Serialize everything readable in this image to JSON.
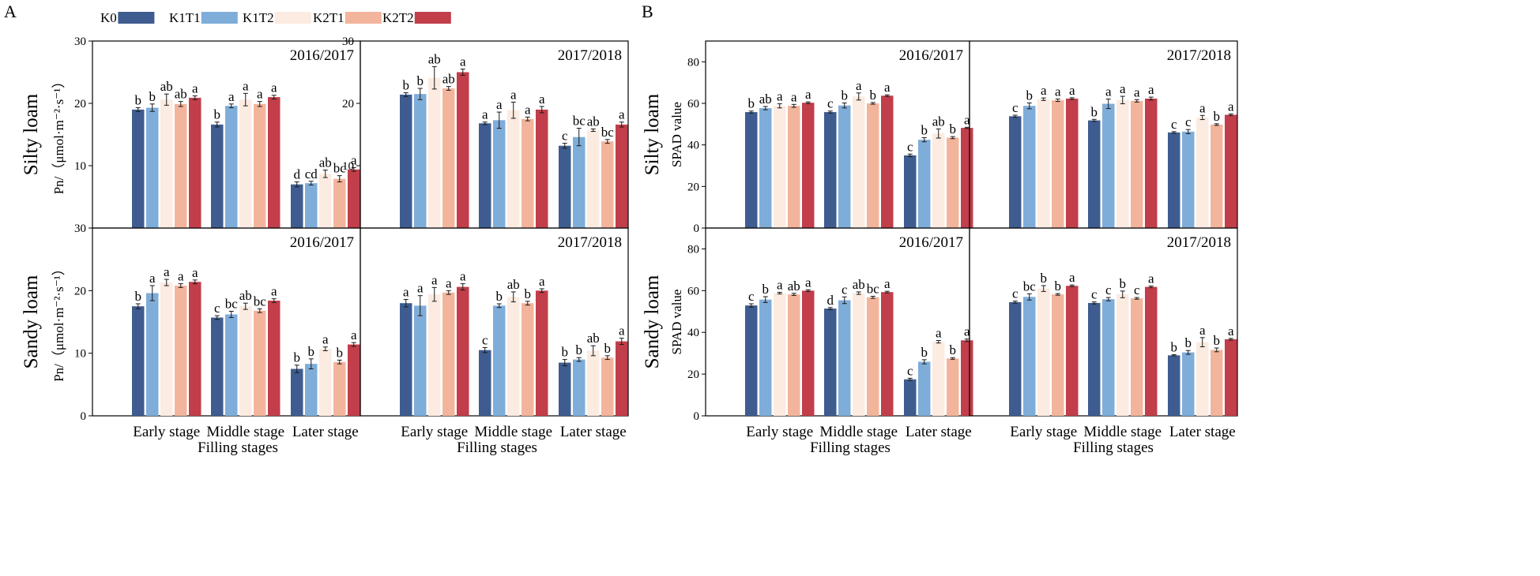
{
  "panels_text": {
    "A": {
      "letter": "A",
      "x_title": "Filling stages"
    },
    "B": {
      "letter": "B",
      "x_title": "Filling stages"
    }
  },
  "legend": [
    {
      "label": "K0",
      "color": "#3E5C8F"
    },
    {
      "label": "K1T1",
      "color": "#7FADD9"
    },
    {
      "label": "K1T2",
      "color": "#FCEBE1"
    },
    {
      "label": "K2T1",
      "color": "#F3B49C"
    },
    {
      "label": "K2T2",
      "color": "#C13E4A"
    }
  ],
  "chart_data": [
    {
      "type": "bar",
      "id": "A-silty-2016",
      "panel": "A",
      "title": "2016/2017",
      "soil": "Silty loam",
      "ylabel_unit": "Pn/（μmol·m⁻²·s⁻¹）",
      "ylim": [
        0,
        30
      ],
      "yticks": [
        10,
        20,
        30
      ],
      "categories": [
        "Early stage",
        "Middle stage",
        "Later stage"
      ],
      "series": [
        {
          "name": "K0",
          "values": [
            19.0,
            16.6,
            7.0
          ],
          "errors": [
            0.3,
            0.4,
            0.4
          ],
          "labels": [
            "b",
            "b",
            "d"
          ]
        },
        {
          "name": "K1T1",
          "values": [
            19.3,
            19.6,
            7.2
          ],
          "errors": [
            0.6,
            0.3,
            0.3
          ],
          "labels": [
            "b",
            "a",
            "cd"
          ]
        },
        {
          "name": "K1T2",
          "values": [
            20.6,
            20.6,
            8.7
          ],
          "errors": [
            0.9,
            1.0,
            0.6
          ],
          "labels": [
            "ab",
            "a",
            "ab"
          ]
        },
        {
          "name": "K2T1",
          "values": [
            19.9,
            19.9,
            7.9
          ],
          "errors": [
            0.4,
            0.4,
            0.5
          ],
          "labels": [
            "ab",
            "a",
            "bc"
          ]
        },
        {
          "name": "K2T2",
          "values": [
            20.9,
            21.0,
            9.4
          ],
          "errors": [
            0.3,
            0.3,
            0.3
          ],
          "labels": [
            "a",
            "a",
            "a"
          ]
        }
      ]
    },
    {
      "type": "bar",
      "id": "A-silty-2017",
      "panel": "A",
      "title": "2017/2018",
      "soil": "Silty loam",
      "ylim": [
        0,
        30
      ],
      "yticks": [
        10,
        20,
        30
      ],
      "categories": [
        "Early stage",
        "Middle stage",
        "Later stage"
      ],
      "series": [
        {
          "name": "K0",
          "values": [
            21.4,
            16.8,
            13.2
          ],
          "errors": [
            0.3,
            0.2,
            0.4
          ],
          "labels": [
            "b",
            "a",
            "c"
          ]
        },
        {
          "name": "K1T1",
          "values": [
            21.5,
            17.3,
            14.6
          ],
          "errors": [
            0.9,
            1.3,
            1.4
          ],
          "labels": [
            "b",
            "a",
            "bc"
          ]
        },
        {
          "name": "K1T2",
          "values": [
            24.1,
            18.9,
            15.7
          ],
          "errors": [
            1.8,
            1.3,
            0.2
          ],
          "labels": [
            "ab",
            "a",
            "ab"
          ]
        },
        {
          "name": "K2T1",
          "values": [
            22.4,
            17.5,
            13.9
          ],
          "errors": [
            0.3,
            0.3,
            0.3
          ],
          "labels": [
            "ab",
            "a",
            "bc"
          ]
        },
        {
          "name": "K2T2",
          "values": [
            25.0,
            19.0,
            16.6
          ],
          "errors": [
            0.5,
            0.5,
            0.4
          ],
          "labels": [
            "a",
            "a",
            "a"
          ]
        }
      ]
    },
    {
      "type": "bar",
      "id": "A-sandy-2016",
      "panel": "A",
      "title": "2016/2017",
      "soil": "Sandy loam",
      "ylabel_unit": "Pn/（μmol·m⁻²·s⁻¹）",
      "ylim": [
        0,
        30
      ],
      "yticks": [
        0,
        10,
        20,
        30
      ],
      "categories": [
        "Early stage",
        "Middle stage",
        "Later stage"
      ],
      "series": [
        {
          "name": "K0",
          "values": [
            17.5,
            15.7,
            7.5
          ],
          "errors": [
            0.4,
            0.3,
            0.6
          ],
          "labels": [
            "b",
            "c",
            "b"
          ]
        },
        {
          "name": "K1T1",
          "values": [
            19.6,
            16.2,
            8.3
          ],
          "errors": [
            1.2,
            0.5,
            0.8
          ],
          "labels": [
            "a",
            "bc",
            "b"
          ]
        },
        {
          "name": "K1T2",
          "values": [
            21.3,
            17.5,
            10.7
          ],
          "errors": [
            0.5,
            0.5,
            0.3
          ],
          "labels": [
            "a",
            "ab",
            "a"
          ]
        },
        {
          "name": "K2T1",
          "values": [
            20.8,
            16.8,
            8.6
          ],
          "errors": [
            0.3,
            0.3,
            0.3
          ],
          "labels": [
            "a",
            "bc",
            "b"
          ]
        },
        {
          "name": "K2T2",
          "values": [
            21.4,
            18.4,
            11.4
          ],
          "errors": [
            0.3,
            0.3,
            0.3
          ],
          "labels": [
            "a",
            "a",
            "a"
          ]
        }
      ]
    },
    {
      "type": "bar",
      "id": "A-sandy-2017",
      "panel": "A",
      "title": "2017/2018",
      "soil": "Sandy loam",
      "ylim": [
        0,
        30
      ],
      "categories": [
        "Early stage",
        "Middle stage",
        "Later stage"
      ],
      "series": [
        {
          "name": "K0",
          "values": [
            18.0,
            10.5,
            8.5
          ],
          "errors": [
            0.6,
            0.4,
            0.5
          ],
          "labels": [
            "a",
            "c",
            "b"
          ]
        },
        {
          "name": "K1T1",
          "values": [
            17.6,
            17.6,
            9.0
          ],
          "errors": [
            1.6,
            0.3,
            0.3
          ],
          "labels": [
            "a",
            "b",
            "b"
          ]
        },
        {
          "name": "K1T2",
          "values": [
            19.4,
            19.0,
            10.4
          ],
          "errors": [
            1.1,
            0.8,
            0.8
          ],
          "labels": [
            "a",
            "ab",
            "ab"
          ]
        },
        {
          "name": "K2T1",
          "values": [
            19.7,
            18.0,
            9.3
          ],
          "errors": [
            0.3,
            0.3,
            0.3
          ],
          "labels": [
            "a",
            "b",
            "b"
          ]
        },
        {
          "name": "K2T2",
          "values": [
            20.6,
            20.0,
            11.9
          ],
          "errors": [
            0.5,
            0.3,
            0.5
          ],
          "labels": [
            "a",
            "a",
            "a"
          ]
        }
      ]
    },
    {
      "type": "bar",
      "id": "B-silty-2016",
      "panel": "B",
      "title": "2016/2017",
      "soil": "Silty loam",
      "ylabel_unit": "SPAD value",
      "ylim": [
        0,
        90
      ],
      "yticks": [
        0,
        20,
        40,
        60,
        80
      ],
      "categories": [
        "Early stage",
        "Middle stage",
        "Later stage"
      ],
      "series": [
        {
          "name": "K0",
          "values": [
            55.8,
            55.8,
            35.0
          ],
          "errors": [
            0.5,
            0.5,
            0.6
          ],
          "labels": [
            "b",
            "c",
            "c"
          ]
        },
        {
          "name": "K1T1",
          "values": [
            57.7,
            59.0,
            42.5
          ],
          "errors": [
            0.8,
            1.2,
            1.0
          ],
          "labels": [
            "ab",
            "b",
            "b"
          ]
        },
        {
          "name": "K1T2",
          "values": [
            58.8,
            63.3,
            45.5
          ],
          "errors": [
            1.0,
            1.7,
            2.2
          ],
          "labels": [
            "a",
            "a",
            "ab"
          ]
        },
        {
          "name": "K2T1",
          "values": [
            58.8,
            60.0,
            43.5
          ],
          "errors": [
            0.7,
            0.4,
            0.5
          ],
          "labels": [
            "a",
            "b",
            "b"
          ]
        },
        {
          "name": "K2T2",
          "values": [
            60.3,
            63.7,
            48.2
          ],
          "errors": [
            0.4,
            0.4,
            0.3
          ],
          "labels": [
            "a",
            "a",
            "a"
          ]
        }
      ]
    },
    {
      "type": "bar",
      "id": "B-silty-2017",
      "panel": "B",
      "title": "2017/2018",
      "soil": "Silty loam",
      "ylim": [
        0,
        90
      ],
      "categories": [
        "Early stage",
        "Middle stage",
        "Later stage"
      ],
      "series": [
        {
          "name": "K0",
          "values": [
            53.8,
            51.8,
            46.0
          ],
          "errors": [
            0.5,
            0.5,
            0.4
          ],
          "labels": [
            "c",
            "b",
            "c"
          ]
        },
        {
          "name": "K1T1",
          "values": [
            58.8,
            59.8,
            46.4
          ],
          "errors": [
            1.4,
            2.3,
            1.0
          ],
          "labels": [
            "b",
            "a",
            "c"
          ]
        },
        {
          "name": "K1T2",
          "values": [
            62.0,
            61.6,
            53.2
          ],
          "errors": [
            0.6,
            1.8,
            1.0
          ],
          "labels": [
            "a",
            "a",
            "a"
          ]
        },
        {
          "name": "K2T1",
          "values": [
            61.5,
            61.2,
            49.8
          ],
          "errors": [
            0.6,
            0.6,
            0.4
          ],
          "labels": [
            "a",
            "a",
            "b"
          ]
        },
        {
          "name": "K2T2",
          "values": [
            62.3,
            62.3,
            54.5
          ],
          "errors": [
            0.4,
            0.7,
            0.4
          ],
          "labels": [
            "a",
            "a",
            "a"
          ]
        }
      ]
    },
    {
      "type": "bar",
      "id": "B-sandy-2016",
      "panel": "B",
      "title": "2016/2017",
      "soil": "Sandy loam",
      "ylabel_unit": "SPAD value",
      "ylim": [
        0,
        90
      ],
      "yticks": [
        0,
        20,
        40,
        60,
        80
      ],
      "categories": [
        "Early stage",
        "Middle stage",
        "Later stage"
      ],
      "series": [
        {
          "name": "K0",
          "values": [
            52.9,
            51.4,
            17.5
          ],
          "errors": [
            0.8,
            0.5,
            0.5
          ],
          "labels": [
            "c",
            "d",
            "c"
          ]
        },
        {
          "name": "K1T1",
          "values": [
            55.7,
            55.4,
            25.9
          ],
          "errors": [
            1.4,
            1.6,
            1.0
          ],
          "labels": [
            "b",
            "c",
            "b"
          ]
        },
        {
          "name": "K1T2",
          "values": [
            58.8,
            58.8,
            35.5
          ],
          "errors": [
            0.4,
            0.6,
            0.6
          ],
          "labels": [
            "a",
            "ab",
            "a"
          ]
        },
        {
          "name": "K2T1",
          "values": [
            58.2,
            56.8,
            27.5
          ],
          "errors": [
            0.5,
            0.5,
            0.4
          ],
          "labels": [
            "ab",
            "bc",
            "b"
          ]
        },
        {
          "name": "K2T2",
          "values": [
            60.0,
            59.3,
            36.2
          ],
          "errors": [
            0.4,
            0.4,
            0.6
          ],
          "labels": [
            "a",
            "a",
            "a"
          ]
        }
      ]
    },
    {
      "type": "bar",
      "id": "B-sandy-2017",
      "panel": "B",
      "title": "2017/2018",
      "soil": "Sandy loam",
      "ylim": [
        0,
        90
      ],
      "categories": [
        "Early stage",
        "Middle stage",
        "Later stage"
      ],
      "series": [
        {
          "name": "K0",
          "values": [
            54.5,
            54.1,
            29.0
          ],
          "errors": [
            0.5,
            0.5,
            0.3
          ],
          "labels": [
            "c",
            "c",
            "b"
          ]
        },
        {
          "name": "K1T1",
          "values": [
            57.0,
            55.9,
            30.4
          ],
          "errors": [
            1.5,
            0.8,
            0.9
          ],
          "labels": [
            "bc",
            "c",
            "b"
          ]
        },
        {
          "name": "K1T2",
          "values": [
            61.0,
            58.2,
            35.3
          ],
          "errors": [
            1.4,
            1.6,
            2.2
          ],
          "labels": [
            "b",
            "b",
            "a"
          ]
        },
        {
          "name": "K2T1",
          "values": [
            58.2,
            56.3,
            31.6
          ],
          "errors": [
            0.4,
            0.4,
            0.9
          ],
          "labels": [
            "b",
            "c",
            "b"
          ]
        },
        {
          "name": "K2T2",
          "values": [
            62.3,
            61.8,
            36.7
          ],
          "errors": [
            0.4,
            0.4,
            0.4
          ],
          "labels": [
            "a",
            "a",
            "a"
          ]
        }
      ]
    }
  ]
}
